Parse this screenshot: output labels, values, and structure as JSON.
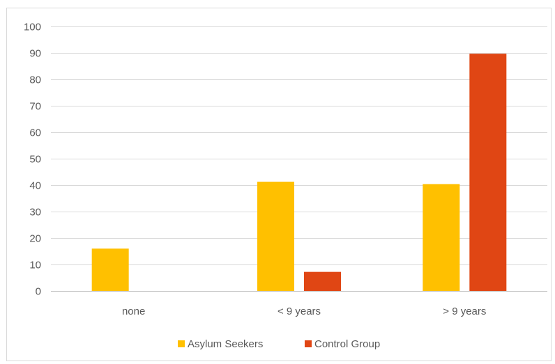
{
  "chart_data": {
    "type": "bar",
    "categories": [
      "none",
      "< 9 years",
      "> 9 years"
    ],
    "series": [
      {
        "name": "Asylum Seekers",
        "values": [
          16,
          41.3,
          40.4
        ],
        "color": "#FFC000"
      },
      {
        "name": "Control Group",
        "values": [
          0,
          7.2,
          89.7
        ],
        "color": "#E04614"
      }
    ],
    "yticks": [
      0,
      10,
      20,
      30,
      40,
      50,
      60,
      70,
      80,
      90,
      100
    ],
    "ylim": [
      0,
      100
    ],
    "grid": true,
    "legend_position": "bottom"
  }
}
